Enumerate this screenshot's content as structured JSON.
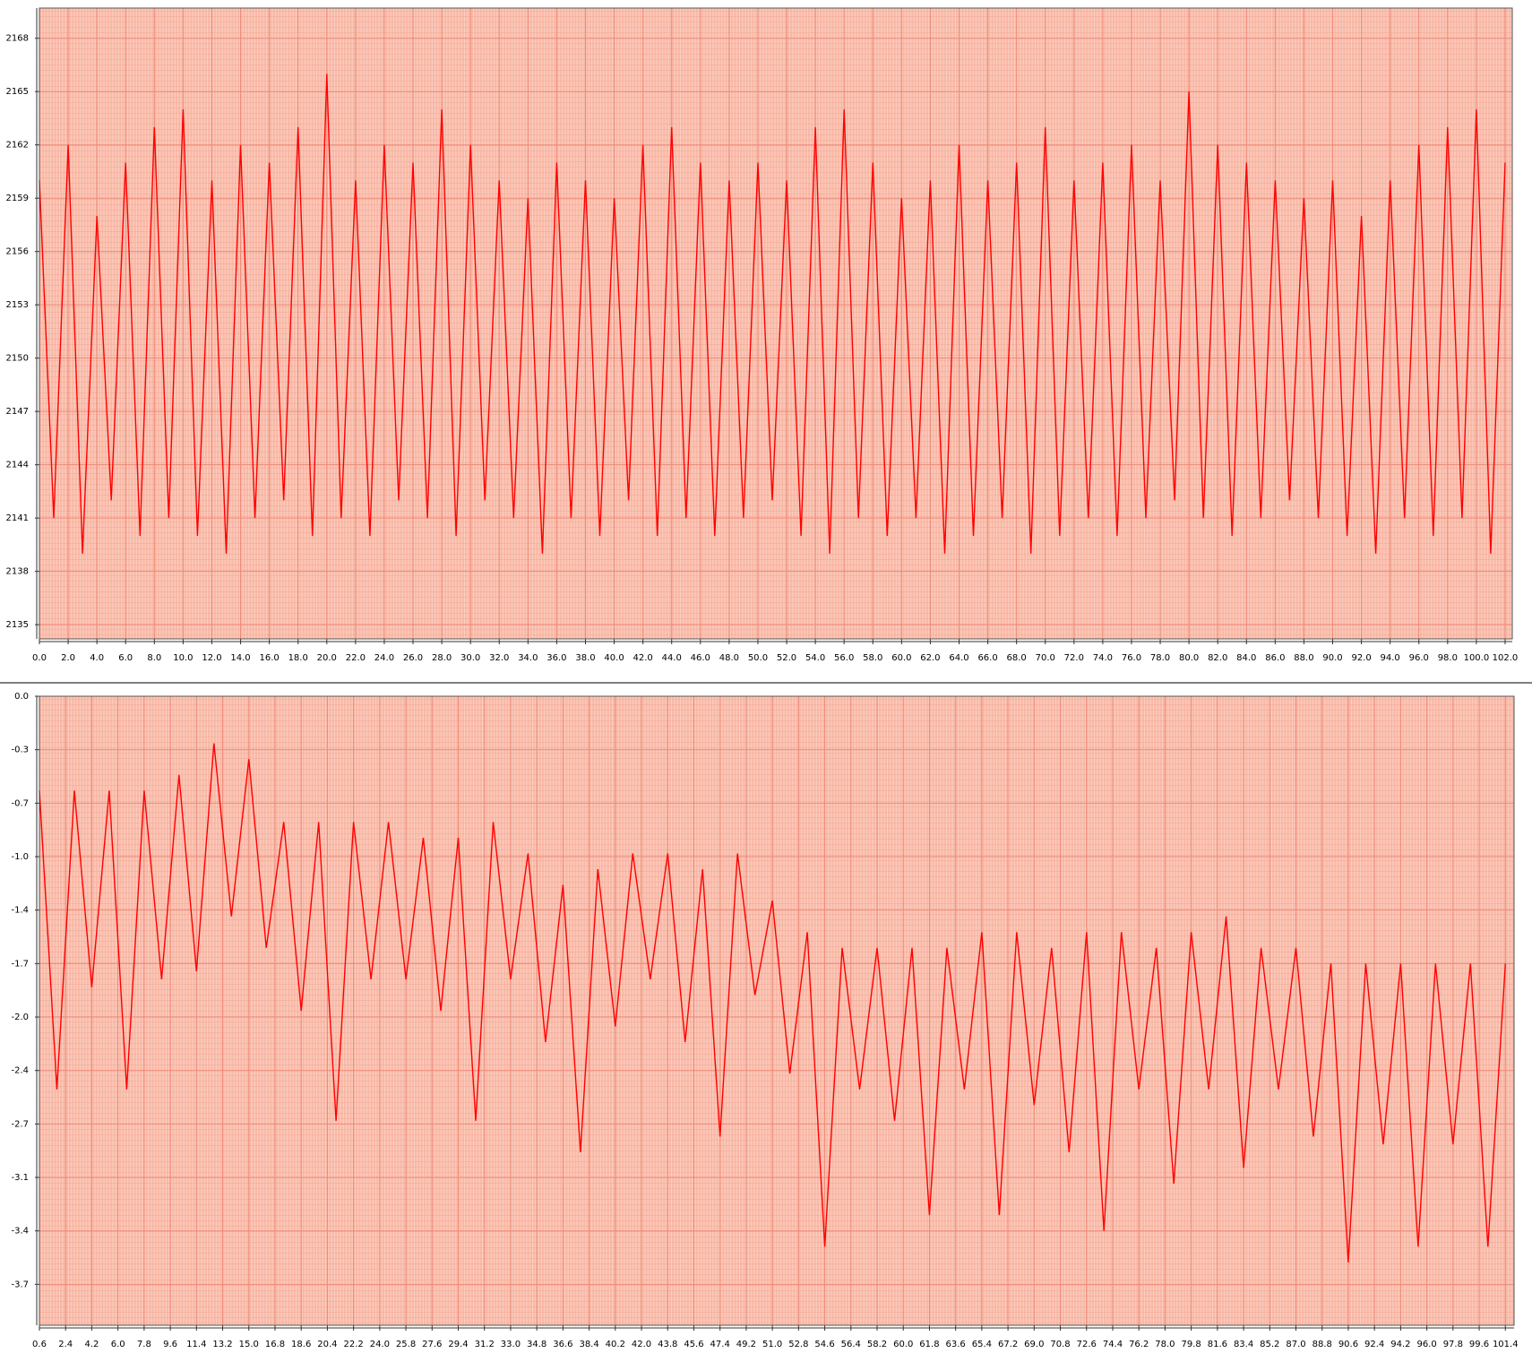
{
  "chart_data": [
    {
      "type": "line",
      "color": "#ff0000",
      "x": [
        0,
        1,
        2,
        3,
        4,
        5,
        6,
        7,
        8,
        9,
        10,
        11,
        12,
        13,
        14,
        15,
        16,
        17,
        18,
        19,
        20,
        21,
        22,
        23,
        24,
        25,
        26,
        27,
        28,
        29,
        30,
        31,
        32,
        33,
        34,
        35,
        36,
        37,
        38,
        39,
        40,
        41,
        42,
        43,
        44,
        45,
        46,
        47,
        48,
        49,
        50,
        51,
        52,
        53,
        54,
        55,
        56,
        57,
        58,
        59,
        60,
        61,
        62,
        63,
        64,
        65,
        66,
        67,
        68,
        69,
        70,
        71,
        72,
        73,
        74,
        75,
        76,
        77,
        78,
        79,
        80,
        81,
        82,
        83,
        84,
        85,
        86,
        87,
        88,
        89,
        90,
        91,
        92,
        93,
        94,
        95,
        96,
        97,
        98,
        99,
        100,
        101,
        102
      ],
      "values": [
        2160,
        2141,
        2162,
        2139,
        2158,
        2142,
        2161,
        2140,
        2163,
        2141,
        2164,
        2140,
        2160,
        2139,
        2162,
        2141,
        2161,
        2142,
        2163,
        2140,
        2166,
        2141,
        2160,
        2140,
        2162,
        2142,
        2161,
        2141,
        2164,
        2140,
        2162,
        2142,
        2160,
        2141,
        2159,
        2139,
        2161,
        2141,
        2160,
        2140,
        2159,
        2142,
        2162,
        2140,
        2163,
        2141,
        2161,
        2140,
        2160,
        2141,
        2161,
        2142,
        2160,
        2140,
        2163,
        2139,
        2164,
        2141,
        2161,
        2140,
        2159,
        2141,
        2160,
        2139,
        2162,
        2140,
        2160,
        2141,
        2161,
        2139,
        2163,
        2140,
        2160,
        2141,
        2161,
        2140,
        2162,
        2141,
        2160,
        2142,
        2165,
        2141,
        2162,
        2140,
        2161,
        2141,
        2160,
        2142,
        2159,
        2141,
        2160,
        2140,
        2158,
        2139,
        2160,
        2141,
        2162,
        2140,
        2163,
        2141,
        2164,
        2139,
        2161
      ],
      "xlim": [
        0,
        102.5
      ],
      "ylim": [
        2134.2,
        2169.7
      ],
      "grid": true,
      "yticks": [
        2135,
        2138,
        2141,
        2144,
        2147,
        2150,
        2153,
        2156,
        2159,
        2162,
        2165,
        2168
      ],
      "xticks": [
        {
          "value": 0,
          "label": "0.0"
        },
        {
          "value": 2,
          "label": "2.0"
        },
        {
          "value": 4,
          "label": "4.0"
        },
        {
          "value": 6,
          "label": "6.0"
        },
        {
          "value": 8,
          "label": "8.0"
        },
        {
          "value": 10,
          "label": "10.0"
        },
        {
          "value": 12,
          "label": "12.0"
        },
        {
          "value": 14,
          "label": "14.0"
        },
        {
          "value": 16,
          "label": "16.0"
        },
        {
          "value": 18,
          "label": "18.0"
        },
        {
          "value": 20,
          "label": "20.0"
        },
        {
          "value": 22,
          "label": "22.0"
        },
        {
          "value": 24,
          "label": "24.0"
        },
        {
          "value": 26,
          "label": "26.0"
        },
        {
          "value": 28,
          "label": "28.0"
        },
        {
          "value": 30,
          "label": "30.0"
        },
        {
          "value": 32,
          "label": "32.0"
        },
        {
          "value": 34,
          "label": "34.0"
        },
        {
          "value": 36,
          "label": "36.0"
        },
        {
          "value": 38,
          "label": "38.0"
        },
        {
          "value": 40,
          "label": "40.0"
        },
        {
          "value": 42,
          "label": "42.0"
        },
        {
          "value": 44,
          "label": "44.0"
        },
        {
          "value": 46,
          "label": "46.0"
        },
        {
          "value": 48,
          "label": "48.0"
        },
        {
          "value": 50,
          "label": "50.0"
        },
        {
          "value": 52,
          "label": "52.0"
        },
        {
          "value": 54,
          "label": "54.0"
        },
        {
          "value": 56,
          "label": "56.0"
        },
        {
          "value": 58,
          "label": "58.0"
        },
        {
          "value": 60,
          "label": "60.0"
        },
        {
          "value": 62,
          "label": "62.0"
        },
        {
          "value": 64,
          "label": "64.0"
        },
        {
          "value": 66,
          "label": "66.0"
        },
        {
          "value": 68,
          "label": "68.0"
        },
        {
          "value": 70,
          "label": "70.0"
        },
        {
          "value": 72,
          "label": "72.0"
        },
        {
          "value": 74,
          "label": "74.0"
        },
        {
          "value": 76,
          "label": "76.0"
        },
        {
          "value": 78,
          "label": "78.0"
        },
        {
          "value": 80,
          "label": "80.0"
        },
        {
          "value": 82,
          "label": "82.0"
        },
        {
          "value": 84,
          "label": "84.0"
        },
        {
          "value": 86,
          "label": "86.0"
        },
        {
          "value": 88,
          "label": "88.0"
        },
        {
          "value": 90,
          "label": "90.0"
        },
        {
          "value": 92,
          "label": "92.0"
        },
        {
          "value": 94,
          "label": "94.0"
        },
        {
          "value": 96,
          "label": "96.0"
        },
        {
          "value": 98,
          "label": "98.0"
        },
        {
          "value": 100,
          "label": "100.0"
        },
        {
          "value": 102,
          "label": "102.0"
        }
      ]
    },
    {
      "type": "line",
      "color": "#ff0000",
      "x": [
        0.6,
        1.8,
        3,
        4.2,
        5.4,
        6.6,
        7.8,
        9,
        10.2,
        11.4,
        12.6,
        13.8,
        15,
        16.2,
        17.4,
        18.6,
        19.8,
        21,
        22.2,
        23.4,
        24.6,
        25.8,
        27,
        28.2,
        29.4,
        30.6,
        31.8,
        33,
        34.2,
        35.4,
        36.6,
        37.8,
        39,
        40.2,
        41.4,
        42.6,
        43.8,
        45,
        46.2,
        47.4,
        48.6,
        49.8,
        51,
        52.2,
        53.4,
        54.6,
        55.8,
        57,
        58.2,
        59.4,
        60.6,
        61.8,
        63,
        64.2,
        65.4,
        66.6,
        67.8,
        69,
        70.2,
        71.4,
        72.6,
        73.8,
        75,
        76.2,
        77.4,
        78.6,
        79.8,
        81,
        82.2,
        83.4,
        84.6,
        85.8,
        87,
        88.2,
        89.4,
        90.6,
        91.8,
        93,
        94.2,
        95.4,
        96.6,
        97.8,
        99,
        100.2,
        101.4
      ],
      "values": [
        -0.6,
        -2.5,
        -0.6,
        -1.85,
        -0.6,
        -2.5,
        -0.6,
        -1.8,
        -0.5,
        -1.75,
        -0.3,
        -1.4,
        -0.4,
        -1.6,
        -0.8,
        -2.0,
        -0.8,
        -2.7,
        -0.8,
        -1.8,
        -0.8,
        -1.8,
        -0.9,
        -2.0,
        -0.9,
        -2.7,
        -0.8,
        -1.8,
        -1.0,
        -2.2,
        -1.2,
        -2.9,
        -1.1,
        -2.1,
        -1.0,
        -1.8,
        -1.0,
        -2.2,
        -1.1,
        -2.8,
        -1.0,
        -1.9,
        -1.3,
        -2.4,
        -1.5,
        -3.5,
        -1.6,
        -2.5,
        -1.6,
        -2.7,
        -1.6,
        -3.3,
        -1.6,
        -2.5,
        -1.5,
        -3.3,
        -1.5,
        -2.6,
        -1.6,
        -2.9,
        -1.5,
        -3.4,
        -1.5,
        -2.5,
        -1.6,
        -3.1,
        -1.5,
        -2.5,
        -1.4,
        -3.0,
        -1.6,
        -2.5,
        -1.6,
        -2.8,
        -1.7,
        -3.6,
        -1.7,
        -2.85,
        -1.7,
        -3.5,
        -1.7,
        -2.85,
        -1.7,
        -3.5,
        -1.7
      ],
      "xlim": [
        0.6,
        102.0
      ],
      "ylim": [
        -4.0,
        0
      ],
      "grid": true,
      "yticks": [
        {
          "value": 0,
          "label": "0.0"
        },
        {
          "value": -0.34,
          "label": "-0.3"
        },
        {
          "value": -0.68,
          "label": "-0.7"
        },
        {
          "value": -1.02,
          "label": "-1.0"
        },
        {
          "value": -1.36,
          "label": "-1.4"
        },
        {
          "value": -1.7,
          "label": "-1.7"
        },
        {
          "value": -2.04,
          "label": "-2.0"
        },
        {
          "value": -2.38,
          "label": "-2.4"
        },
        {
          "value": -2.72,
          "label": "-2.7"
        },
        {
          "value": -3.06,
          "label": "-3.1"
        },
        {
          "value": -3.4,
          "label": "-3.4"
        },
        {
          "value": -3.74,
          "label": "-3.7"
        }
      ],
      "xticks": [
        0.6,
        2.4,
        4.2,
        {
          "value": 6,
          "label": "6.0"
        },
        7.8,
        9.6,
        11.4,
        13.2,
        {
          "value": 15,
          "label": "15.0"
        },
        16.8,
        18.6,
        20.4,
        22.2,
        {
          "value": 24,
          "label": "24.0"
        },
        25.8,
        27.6,
        29.4,
        31.2,
        {
          "value": 33,
          "label": "33.0"
        },
        34.8,
        36.6,
        38.4,
        40.2,
        {
          "value": 42,
          "label": "42.0"
        },
        43.8,
        45.6,
        47.4,
        49.2,
        {
          "value": 51,
          "label": "51.0"
        },
        52.8,
        54.6,
        56.4,
        58.2,
        {
          "value": 60,
          "label": "60.0"
        },
        61.8,
        63.6,
        65.4,
        67.2,
        {
          "value": 69,
          "label": "69.0"
        },
        70.8,
        72.6,
        74.4,
        76.2,
        {
          "value": 78,
          "label": "78.0"
        },
        79.8,
        81.6,
        83.4,
        85.2,
        {
          "value": 87,
          "label": "87.0"
        },
        88.8,
        90.6,
        92.4,
        94.2,
        {
          "value": 96,
          "label": "96.0"
        },
        97.8,
        99.6,
        101.4
      ]
    }
  ]
}
